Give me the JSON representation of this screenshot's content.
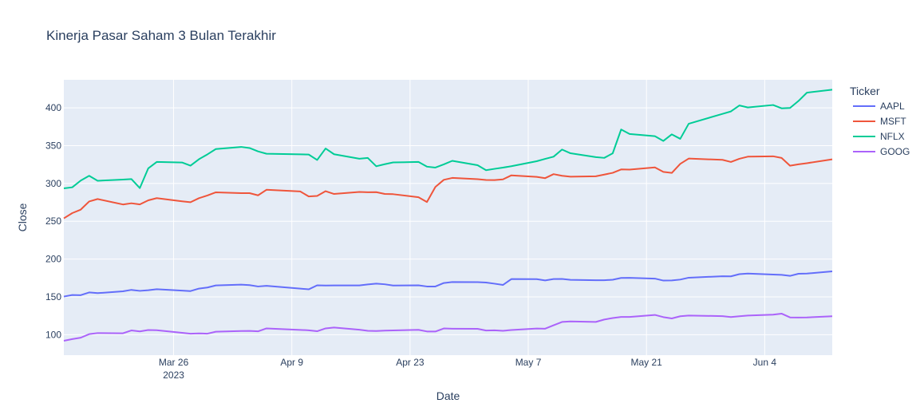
{
  "chart_data": {
    "type": "line",
    "title": "Kinerja Pasar Saham 3 Bulan Terakhir",
    "xlabel": "Date",
    "ylabel": "Close",
    "ylim": [
      73,
      437
    ],
    "xlim": [
      "2023-03-13",
      "2023-06-12"
    ],
    "grid": true,
    "legend_title": "Ticker",
    "legend_position": "right",
    "x_ticks": [
      {
        "date": "2023-03-26",
        "label": "Mar 26",
        "sublabel": "2023"
      },
      {
        "date": "2023-04-09",
        "label": "Apr 9",
        "sublabel": ""
      },
      {
        "date": "2023-04-23",
        "label": "Apr 23",
        "sublabel": ""
      },
      {
        "date": "2023-05-07",
        "label": "May 7",
        "sublabel": ""
      },
      {
        "date": "2023-05-21",
        "label": "May 21",
        "sublabel": ""
      },
      {
        "date": "2023-06-04",
        "label": "Jun 4",
        "sublabel": ""
      }
    ],
    "y_ticks": [
      100,
      150,
      200,
      250,
      300,
      350,
      400
    ],
    "series": [
      {
        "name": "AAPL",
        "color": "#636efa",
        "points": [
          [
            "2023-03-13",
            150.5
          ],
          [
            "2023-03-14",
            152.5
          ],
          [
            "2023-03-15",
            152.3
          ],
          [
            "2023-03-16",
            155.9
          ],
          [
            "2023-03-17",
            155.0
          ],
          [
            "2023-03-20",
            157.4
          ],
          [
            "2023-03-21",
            159.3
          ],
          [
            "2023-03-22",
            158.0
          ],
          [
            "2023-03-23",
            158.9
          ],
          [
            "2023-03-24",
            160.2
          ],
          [
            "2023-03-27",
            158.3
          ],
          [
            "2023-03-28",
            157.7
          ],
          [
            "2023-03-29",
            161.0
          ],
          [
            "2023-03-30",
            162.4
          ],
          [
            "2023-03-31",
            165.2
          ],
          [
            "2023-04-03",
            166.2
          ],
          [
            "2023-04-04",
            165.6
          ],
          [
            "2023-04-05",
            163.8
          ],
          [
            "2023-04-06",
            164.7
          ],
          [
            "2023-04-10",
            161.0
          ],
          [
            "2023-04-11",
            160.0
          ],
          [
            "2023-04-12",
            165.3
          ],
          [
            "2023-04-13",
            165.0
          ],
          [
            "2023-04-14",
            165.2
          ],
          [
            "2023-04-17",
            165.2
          ],
          [
            "2023-04-18",
            166.5
          ],
          [
            "2023-04-19",
            167.6
          ],
          [
            "2023-04-20",
            166.7
          ],
          [
            "2023-04-21",
            165.0
          ],
          [
            "2023-04-24",
            165.3
          ],
          [
            "2023-04-25",
            163.8
          ],
          [
            "2023-04-26",
            163.8
          ],
          [
            "2023-04-27",
            168.4
          ],
          [
            "2023-04-28",
            169.7
          ],
          [
            "2023-05-01",
            169.6
          ],
          [
            "2023-05-02",
            169.0
          ],
          [
            "2023-05-03",
            167.5
          ],
          [
            "2023-05-04",
            165.8
          ],
          [
            "2023-05-05",
            173.6
          ],
          [
            "2023-05-08",
            173.5
          ],
          [
            "2023-05-09",
            171.8
          ],
          [
            "2023-05-10",
            173.6
          ],
          [
            "2023-05-11",
            173.8
          ],
          [
            "2023-05-12",
            172.6
          ],
          [
            "2023-05-15",
            172.1
          ],
          [
            "2023-05-16",
            172.1
          ],
          [
            "2023-05-17",
            172.7
          ],
          [
            "2023-05-18",
            175.1
          ],
          [
            "2023-05-19",
            175.2
          ],
          [
            "2023-05-22",
            174.2
          ],
          [
            "2023-05-23",
            171.6
          ],
          [
            "2023-05-24",
            171.8
          ],
          [
            "2023-05-25",
            172.9
          ],
          [
            "2023-05-26",
            175.4
          ],
          [
            "2023-05-30",
            177.3
          ],
          [
            "2023-05-31",
            177.2
          ],
          [
            "2023-06-01",
            180.1
          ],
          [
            "2023-06-02",
            180.9
          ],
          [
            "2023-06-05",
            179.6
          ],
          [
            "2023-06-06",
            179.2
          ],
          [
            "2023-06-07",
            177.8
          ],
          [
            "2023-06-08",
            180.6
          ],
          [
            "2023-06-09",
            180.9
          ],
          [
            "2023-06-12",
            183.8
          ]
        ]
      },
      {
        "name": "MSFT",
        "color": "#ef553b",
        "points": [
          [
            "2023-03-13",
            253.9
          ],
          [
            "2023-03-14",
            260.8
          ],
          [
            "2023-03-15",
            265.4
          ],
          [
            "2023-03-16",
            276.2
          ],
          [
            "2023-03-17",
            279.4
          ],
          [
            "2023-03-20",
            272.2
          ],
          [
            "2023-03-21",
            273.8
          ],
          [
            "2023-03-22",
            272.3
          ],
          [
            "2023-03-23",
            277.7
          ],
          [
            "2023-03-24",
            280.6
          ],
          [
            "2023-03-27",
            276.4
          ],
          [
            "2023-03-28",
            275.2
          ],
          [
            "2023-03-29",
            280.5
          ],
          [
            "2023-03-30",
            284.1
          ],
          [
            "2023-03-31",
            288.3
          ],
          [
            "2023-04-03",
            287.2
          ],
          [
            "2023-04-04",
            287.2
          ],
          [
            "2023-04-05",
            284.3
          ],
          [
            "2023-04-06",
            291.6
          ],
          [
            "2023-04-10",
            289.4
          ],
          [
            "2023-04-11",
            282.8
          ],
          [
            "2023-04-12",
            283.5
          ],
          [
            "2023-04-13",
            289.8
          ],
          [
            "2023-04-14",
            286.1
          ],
          [
            "2023-04-17",
            288.8
          ],
          [
            "2023-04-18",
            288.4
          ],
          [
            "2023-04-19",
            288.5
          ],
          [
            "2023-04-20",
            286.1
          ],
          [
            "2023-04-21",
            285.8
          ],
          [
            "2023-04-24",
            281.8
          ],
          [
            "2023-04-25",
            275.4
          ],
          [
            "2023-04-26",
            295.4
          ],
          [
            "2023-04-27",
            304.8
          ],
          [
            "2023-04-28",
            307.3
          ],
          [
            "2023-05-01",
            305.6
          ],
          [
            "2023-05-02",
            304.6
          ],
          [
            "2023-05-03",
            304.4
          ],
          [
            "2023-05-04",
            305.4
          ],
          [
            "2023-05-05",
            310.7
          ],
          [
            "2023-05-08",
            308.7
          ],
          [
            "2023-05-09",
            307.0
          ],
          [
            "2023-05-10",
            312.3
          ],
          [
            "2023-05-11",
            310.1
          ],
          [
            "2023-05-12",
            308.9
          ],
          [
            "2023-05-15",
            309.5
          ],
          [
            "2023-05-16",
            311.7
          ],
          [
            "2023-05-17",
            314.0
          ],
          [
            "2023-05-18",
            318.5
          ],
          [
            "2023-05-19",
            318.3
          ],
          [
            "2023-05-22",
            321.2
          ],
          [
            "2023-05-23",
            315.3
          ],
          [
            "2023-05-24",
            313.9
          ],
          [
            "2023-05-25",
            325.9
          ],
          [
            "2023-05-26",
            332.9
          ],
          [
            "2023-05-30",
            331.2
          ],
          [
            "2023-05-31",
            328.4
          ],
          [
            "2023-06-01",
            332.6
          ],
          [
            "2023-06-02",
            335.4
          ],
          [
            "2023-06-05",
            335.9
          ],
          [
            "2023-06-06",
            333.7
          ],
          [
            "2023-06-07",
            323.4
          ],
          [
            "2023-06-08",
            325.3
          ],
          [
            "2023-06-09",
            326.8
          ],
          [
            "2023-06-12",
            331.9
          ]
        ]
      },
      {
        "name": "NFLX",
        "color": "#00cc96",
        "points": [
          [
            "2023-03-13",
            293.5
          ],
          [
            "2023-03-14",
            294.9
          ],
          [
            "2023-03-15",
            303.8
          ],
          [
            "2023-03-16",
            310.1
          ],
          [
            "2023-03-17",
            303.5
          ],
          [
            "2023-03-20",
            305.1
          ],
          [
            "2023-03-21",
            305.8
          ],
          [
            "2023-03-22",
            293.9
          ],
          [
            "2023-03-23",
            320.0
          ],
          [
            "2023-03-24",
            328.4
          ],
          [
            "2023-03-27",
            327.7
          ],
          [
            "2023-03-28",
            323.5
          ],
          [
            "2023-03-29",
            332.0
          ],
          [
            "2023-03-30",
            338.4
          ],
          [
            "2023-03-31",
            345.5
          ],
          [
            "2023-04-03",
            348.3
          ],
          [
            "2023-04-04",
            346.8
          ],
          [
            "2023-04-05",
            342.4
          ],
          [
            "2023-04-06",
            339.3
          ],
          [
            "2023-04-10",
            338.5
          ],
          [
            "2023-04-11",
            338.2
          ],
          [
            "2023-04-12",
            331.0
          ],
          [
            "2023-04-13",
            346.2
          ],
          [
            "2023-04-14",
            338.6
          ],
          [
            "2023-04-17",
            332.7
          ],
          [
            "2023-04-18",
            333.7
          ],
          [
            "2023-04-19",
            322.7
          ],
          [
            "2023-04-20",
            325.4
          ],
          [
            "2023-04-21",
            327.8
          ],
          [
            "2023-04-24",
            328.4
          ],
          [
            "2023-04-25",
            322.2
          ],
          [
            "2023-04-26",
            321.0
          ],
          [
            "2023-04-27",
            325.2
          ],
          [
            "2023-04-28",
            329.9
          ],
          [
            "2023-05-01",
            324.1
          ],
          [
            "2023-05-02",
            317.5
          ],
          [
            "2023-05-03",
            319.3
          ],
          [
            "2023-05-04",
            320.9
          ],
          [
            "2023-05-05",
            322.8
          ],
          [
            "2023-05-08",
            329.4
          ],
          [
            "2023-05-09",
            332.5
          ],
          [
            "2023-05-10",
            335.4
          ],
          [
            "2023-05-11",
            344.8
          ],
          [
            "2023-05-12",
            339.9
          ],
          [
            "2023-05-15",
            334.8
          ],
          [
            "2023-05-16",
            333.8
          ],
          [
            "2023-05-17",
            339.8
          ],
          [
            "2023-05-18",
            371.3
          ],
          [
            "2023-05-19",
            365.4
          ],
          [
            "2023-05-22",
            362.5
          ],
          [
            "2023-05-23",
            356.2
          ],
          [
            "2023-05-24",
            364.9
          ],
          [
            "2023-05-25",
            359.0
          ],
          [
            "2023-05-26",
            378.9
          ],
          [
            "2023-05-30",
            392.0
          ],
          [
            "2023-05-31",
            395.2
          ],
          [
            "2023-06-01",
            403.1
          ],
          [
            "2023-06-02",
            400.5
          ],
          [
            "2023-06-05",
            403.7
          ],
          [
            "2023-06-06",
            399.3
          ],
          [
            "2023-06-07",
            399.8
          ],
          [
            "2023-06-08",
            409.0
          ],
          [
            "2023-06-09",
            420.0
          ],
          [
            "2023-06-12",
            424.0
          ]
        ]
      },
      {
        "name": "GOOG",
        "color": "#ab63fa",
        "points": [
          [
            "2023-03-13",
            92.0
          ],
          [
            "2023-03-14",
            94.2
          ],
          [
            "2023-03-15",
            96.1
          ],
          [
            "2023-03-16",
            100.8
          ],
          [
            "2023-03-17",
            102.2
          ],
          [
            "2023-03-20",
            101.9
          ],
          [
            "2023-03-21",
            105.7
          ],
          [
            "2023-03-22",
            104.4
          ],
          [
            "2023-03-23",
            106.2
          ],
          [
            "2023-03-24",
            106.0
          ],
          [
            "2023-03-27",
            102.5
          ],
          [
            "2023-03-28",
            101.4
          ],
          [
            "2023-03-29",
            101.8
          ],
          [
            "2023-03-30",
            101.4
          ],
          [
            "2023-03-31",
            104.0
          ],
          [
            "2023-04-03",
            104.9
          ],
          [
            "2023-04-04",
            105.1
          ],
          [
            "2023-04-05",
            104.5
          ],
          [
            "2023-04-06",
            108.4
          ],
          [
            "2023-04-10",
            106.4
          ],
          [
            "2023-04-11",
            105.9
          ],
          [
            "2023-04-12",
            104.6
          ],
          [
            "2023-04-13",
            108.4
          ],
          [
            "2023-04-14",
            109.5
          ],
          [
            "2023-04-17",
            106.6
          ],
          [
            "2023-04-18",
            105.2
          ],
          [
            "2023-04-19",
            104.9
          ],
          [
            "2023-04-20",
            105.4
          ],
          [
            "2023-04-21",
            105.7
          ],
          [
            "2023-04-24",
            106.5
          ],
          [
            "2023-04-25",
            104.3
          ],
          [
            "2023-04-26",
            104.2
          ],
          [
            "2023-04-27",
            108.3
          ],
          [
            "2023-04-28",
            108.0
          ],
          [
            "2023-05-01",
            107.8
          ],
          [
            "2023-05-02",
            105.6
          ],
          [
            "2023-05-03",
            105.8
          ],
          [
            "2023-05-04",
            105.2
          ],
          [
            "2023-05-05",
            106.2
          ],
          [
            "2023-05-08",
            108.2
          ],
          [
            "2023-05-09",
            108.0
          ],
          [
            "2023-05-10",
            112.5
          ],
          [
            "2023-05-11",
            116.9
          ],
          [
            "2023-05-12",
            117.6
          ],
          [
            "2023-05-15",
            116.9
          ],
          [
            "2023-05-16",
            120.1
          ],
          [
            "2023-05-17",
            122.1
          ],
          [
            "2023-05-18",
            123.5
          ],
          [
            "2023-05-19",
            123.5
          ],
          [
            "2023-05-22",
            126.2
          ],
          [
            "2023-05-23",
            123.3
          ],
          [
            "2023-05-24",
            121.5
          ],
          [
            "2023-05-25",
            124.4
          ],
          [
            "2023-05-26",
            125.4
          ],
          [
            "2023-05-30",
            124.6
          ],
          [
            "2023-05-31",
            123.4
          ],
          [
            "2023-06-01",
            124.4
          ],
          [
            "2023-06-02",
            125.3
          ],
          [
            "2023-06-05",
            126.6
          ],
          [
            "2023-06-06",
            127.9
          ],
          [
            "2023-06-07",
            122.9
          ],
          [
            "2023-06-08",
            122.7
          ],
          [
            "2023-06-09",
            122.9
          ],
          [
            "2023-06-12",
            124.4
          ]
        ]
      }
    ]
  }
}
